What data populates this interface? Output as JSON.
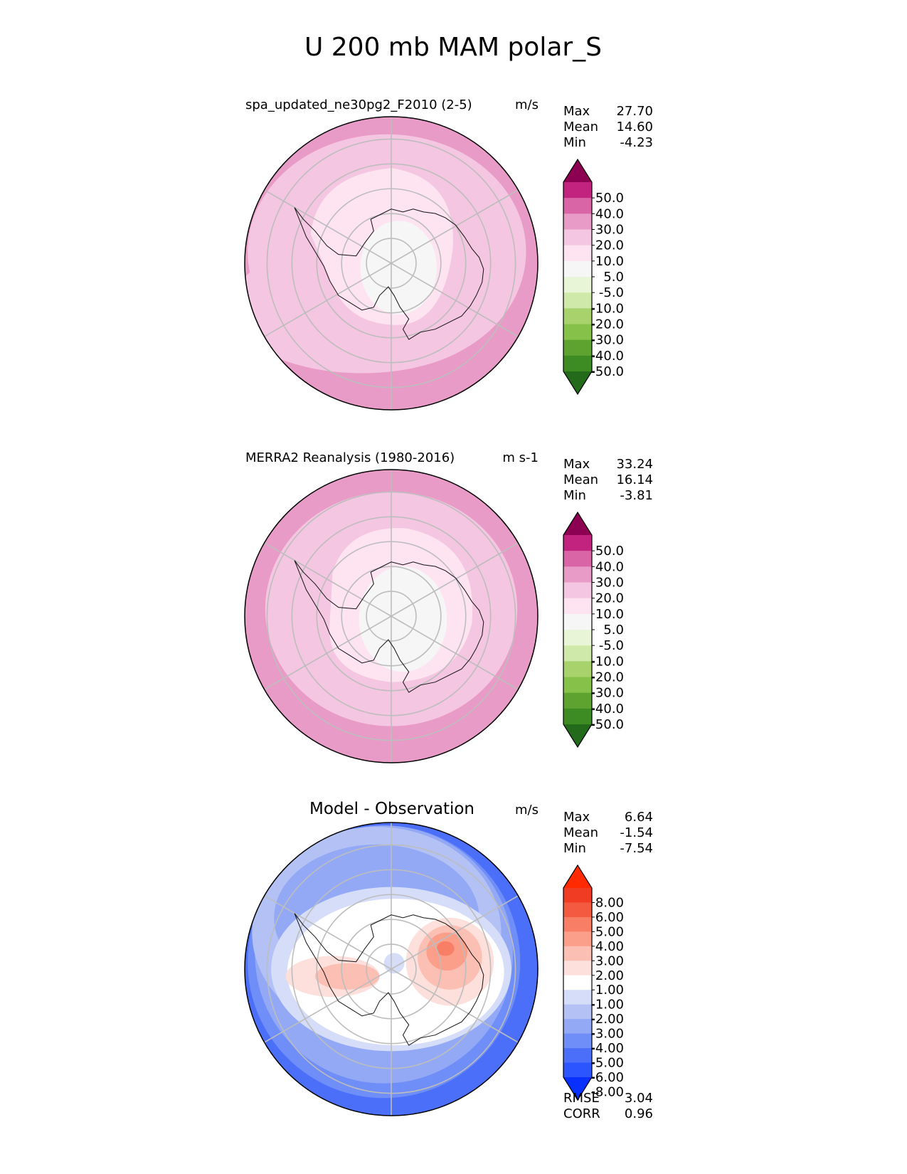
{
  "title": "U 200 mb MAM polar_S",
  "colors": {
    "pink_scale": [
      "#276419",
      "#4d9221",
      "#7fbc41",
      "#b8e186",
      "#e6f5d0",
      "#f7f7f7",
      "#fde0ef",
      "#f1b6da",
      "#de77ae",
      "#c51b7d",
      "#8e0152"
    ],
    "pink_levels": [
      "#236a1b",
      "#3d8b23",
      "#5ea22f",
      "#86c24a",
      "#a8d36c",
      "#cfe9aa",
      "#e8f5d6",
      "#f6f6f6",
      "#fde4f0",
      "#f5c6e1",
      "#e99bc8",
      "#d964a6",
      "#c2237f",
      "#8c0152"
    ],
    "diff_levels": [
      "#0830ff",
      "#2c55ff",
      "#4b6ff8",
      "#6f8ef7",
      "#93a9f6",
      "#b3c1f5",
      "#d5ddf8",
      "#ffffff",
      "#fde0dc",
      "#fcbfb3",
      "#fb9f8a",
      "#f87f66",
      "#f45a40",
      "#f03c22",
      "#ff2a00"
    ],
    "land": "#111111",
    "grid": "#bdbdbd"
  },
  "chart_data": [
    {
      "type": "heatmap",
      "projection": "south-polar-stereographic",
      "title": "spa_updated_ne30pg2_F2010 (2-5)",
      "units": "m/s",
      "stats": [
        {
          "label": "Max",
          "value": "27.70"
        },
        {
          "label": "Mean",
          "value": "14.60"
        },
        {
          "label": "Min",
          "value": "-4.23"
        }
      ],
      "colorbar": {
        "ticks": [
          "50.0",
          "40.0",
          "30.0",
          "20.0",
          "10.0",
          "5.0",
          "-5.0",
          "-10.0",
          "-20.0",
          "-30.0",
          "-40.0",
          "-50.0"
        ],
        "extend": "both"
      },
      "field": {
        "outer_level": 10,
        "core_level": 9,
        "inner_level": 8,
        "pole_level": 7
      }
    },
    {
      "type": "heatmap",
      "projection": "south-polar-stereographic",
      "title": "MERRA2 Reanalysis (1980-2016)",
      "units": "m s-1",
      "stats": [
        {
          "label": "Max",
          "value": "33.24"
        },
        {
          "label": "Mean",
          "value": "16.14"
        },
        {
          "label": "Min",
          "value": "-3.81"
        }
      ],
      "colorbar": {
        "ticks": [
          "50.0",
          "40.0",
          "30.0",
          "20.0",
          "10.0",
          "5.0",
          "-5.0",
          "-10.0",
          "-20.0",
          "-30.0",
          "-40.0",
          "-50.0"
        ],
        "extend": "both"
      },
      "field": {
        "outer_level": 10,
        "core_level": 9,
        "inner_level": 8,
        "pole_level": 7
      }
    },
    {
      "type": "heatmap",
      "projection": "south-polar-stereographic",
      "title": "Model - Observation",
      "units": "m/s",
      "stats": [
        {
          "label": "Max",
          "value": "6.64"
        },
        {
          "label": "Mean",
          "value": "-1.54"
        },
        {
          "label": "Min",
          "value": "-7.54"
        }
      ],
      "colorbar": {
        "ticks": [
          "8.00",
          "6.00",
          "5.00",
          "4.00",
          "3.00",
          "2.00",
          "1.00",
          "-1.00",
          "-2.00",
          "-3.00",
          "-4.00",
          "-5.00",
          "-6.00",
          "-8.00"
        ],
        "extend": "both"
      },
      "metrics": [
        {
          "label": "RMSE",
          "value": "3.04"
        },
        {
          "label": "CORR",
          "value": "0.96"
        }
      ]
    }
  ]
}
